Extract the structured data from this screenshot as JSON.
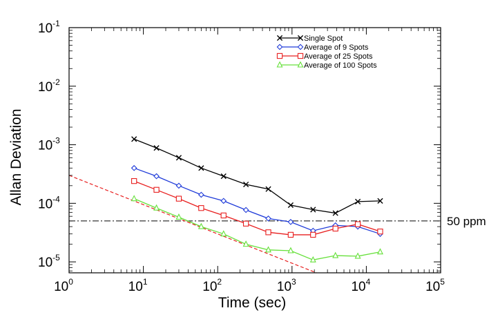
{
  "chart_data": {
    "type": "line",
    "scale": {
      "x": "log",
      "y": "log"
    },
    "xlabel": "Time (sec)",
    "ylabel": "Allan Deviation",
    "xlim": [
      1,
      100000
    ],
    "ylim": [
      6.5e-06,
      0.1
    ],
    "x_ticks": [
      {
        "base": "10",
        "exp": "0",
        "value": 1
      },
      {
        "base": "10",
        "exp": "1",
        "value": 10
      },
      {
        "base": "10",
        "exp": "2",
        "value": 100
      },
      {
        "base": "10",
        "exp": "3",
        "value": 1000
      },
      {
        "base": "10",
        "exp": "4",
        "value": 10000
      },
      {
        "base": "10",
        "exp": "5",
        "value": 100000
      }
    ],
    "y_ticks": [
      {
        "base": "10",
        "exp": "-5",
        "value": 1e-05
      },
      {
        "base": "10",
        "exp": "-4",
        "value": 0.0001
      },
      {
        "base": "10",
        "exp": "-3",
        "value": 0.001
      },
      {
        "base": "10",
        "exp": "-2",
        "value": 0.01
      },
      {
        "base": "10",
        "exp": "-1",
        "value": 0.1
      }
    ],
    "series": [
      {
        "name": "Single Spot",
        "color": "#000000",
        "marker": "x",
        "x": [
          7.5,
          15,
          30,
          60,
          120,
          240,
          480,
          960,
          1920,
          3840,
          7680,
          15360
        ],
        "y": [
          0.00125,
          0.00088,
          0.0006,
          0.0004,
          0.00029,
          0.00021,
          0.000175,
          9.3e-05,
          7.8e-05,
          6.8e-05,
          0.000107,
          0.00011
        ]
      },
      {
        "name": "Average of 9 Spots",
        "color": "#1f3bd9",
        "marker": "diamond",
        "x": [
          7.5,
          15,
          30,
          60,
          120,
          240,
          480,
          960,
          1920,
          3840,
          7680,
          15360
        ],
        "y": [
          0.0004,
          0.00029,
          0.0002,
          0.00014,
          0.00011,
          7.7e-05,
          5.5e-05,
          4.8e-05,
          3.4e-05,
          4.2e-05,
          4e-05,
          3e-05
        ]
      },
      {
        "name": "Average of 25 Spots",
        "color": "#e81e1e",
        "marker": "square",
        "x": [
          7.5,
          15,
          30,
          60,
          120,
          240,
          480,
          960,
          1920,
          3840,
          7680,
          15360
        ],
        "y": [
          0.00024,
          0.00017,
          0.00012,
          8.3e-05,
          6.2e-05,
          4.5e-05,
          3.2e-05,
          2.9e-05,
          2.9e-05,
          3.7e-05,
          4.4e-05,
          3.3e-05
        ]
      },
      {
        "name": "Average of 100 Spots",
        "color": "#66e03a",
        "marker": "triangle",
        "x": [
          7.5,
          15,
          30,
          60,
          120,
          240,
          480,
          960,
          1920,
          3840,
          7680,
          15360
        ],
        "y": [
          0.00012,
          8.3e-05,
          5.8e-05,
          4e-05,
          3e-05,
          2e-05,
          1.6e-05,
          1.55e-05,
          1.08e-05,
          1.28e-05,
          1.25e-05,
          1.48e-05
        ]
      }
    ],
    "reference_lines": [
      {
        "name": "50 ppm",
        "type": "horizontal",
        "y": 5e-05,
        "style": "dash-dot",
        "color": "#000000"
      },
      {
        "name": "t^-1/2 slope",
        "type": "line",
        "x": [
          1,
          4500
        ],
        "y": [
          0.0003,
          4.47e-06
        ],
        "style": "dashed",
        "color": "#e81e1e"
      }
    ],
    "annotation": "50 ppm",
    "legend_position": "top-right"
  }
}
